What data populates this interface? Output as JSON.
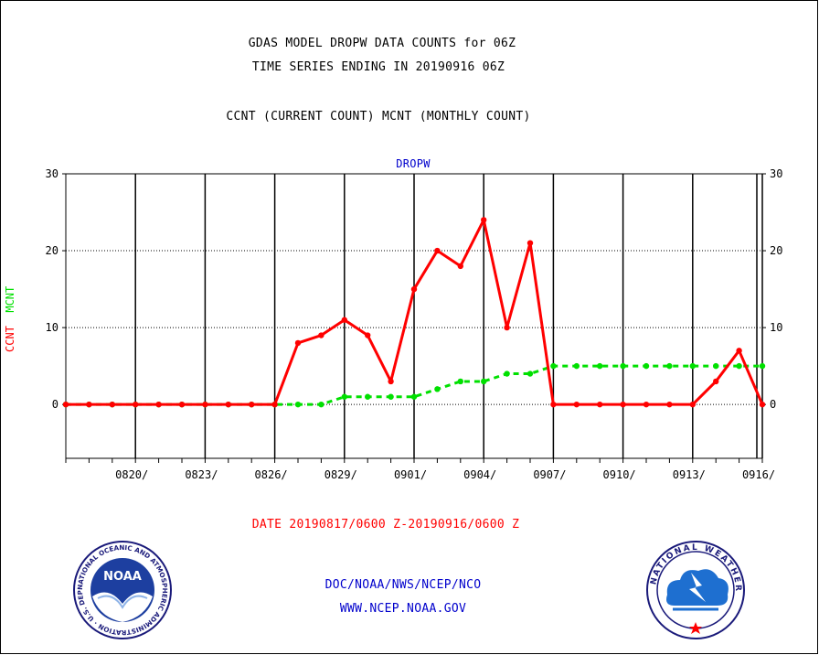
{
  "chart_data": {
    "type": "line",
    "title_lines": [
      "GDAS MODEL DROPW DATA COUNTS for 06Z",
      "TIME SERIES ENDING IN 20190916 06Z"
    ],
    "subtitle": "CCNT (CURRENT COUNT) MCNT (MONTHLY COUNT)",
    "panel_label": "DROPW",
    "ylabel_ccnt": "CCNT",
    "ylabel_mcnt": "MCNT",
    "xlabel": "DATE 20190817/0600 Z-20190916/0600 Z",
    "ylim": [
      -7,
      30
    ],
    "yticks": [
      0,
      10,
      20,
      30
    ],
    "x_tick_labels": [
      "0820/",
      "0823/",
      "0826/",
      "0829/",
      "0901/",
      "0904/",
      "0907/",
      "0910/",
      "0913/",
      "0916/"
    ],
    "x_tick_dates": [
      "2019-08-20",
      "2019-08-23",
      "2019-08-26",
      "2019-08-29",
      "2019-09-01",
      "2019-09-04",
      "2019-09-07",
      "2019-09-10",
      "2019-09-13",
      "2019-09-16"
    ],
    "x": [
      "2019-08-17",
      "2019-08-18",
      "2019-08-19",
      "2019-08-20",
      "2019-08-21",
      "2019-08-22",
      "2019-08-23",
      "2019-08-24",
      "2019-08-25",
      "2019-08-26",
      "2019-08-27",
      "2019-08-28",
      "2019-08-29",
      "2019-08-30",
      "2019-08-31",
      "2019-09-01",
      "2019-09-02",
      "2019-09-03",
      "2019-09-04",
      "2019-09-05",
      "2019-09-06",
      "2019-09-07",
      "2019-09-08",
      "2019-09-09",
      "2019-09-10",
      "2019-09-11",
      "2019-09-12",
      "2019-09-13",
      "2019-09-14",
      "2019-09-15",
      "2019-09-16"
    ],
    "series": [
      {
        "name": "CCNT",
        "color": "#ff0000",
        "style": "solid",
        "values": [
          0,
          0,
          0,
          0,
          0,
          0,
          0,
          0,
          0,
          0,
          8,
          9,
          11,
          9,
          3,
          15,
          20,
          18,
          24,
          10,
          21,
          0,
          0,
          0,
          0,
          0,
          0,
          0,
          3,
          7,
          0
        ]
      },
      {
        "name": "MCNT",
        "color": "#00e000",
        "style": "dashed",
        "values": [
          0,
          0,
          0,
          0,
          0,
          0,
          0,
          0,
          0,
          0,
          0,
          0,
          1,
          1,
          1,
          1,
          2,
          3,
          3,
          4,
          4,
          5,
          5,
          5,
          5,
          5,
          5,
          5,
          5,
          5,
          5
        ]
      }
    ],
    "grid": true
  },
  "footer": {
    "line1": "DOC/NOAA/NWS/NCEP/NCO",
    "line2": "WWW.NCEP.NOAA.GOV"
  },
  "logos": {
    "noaa_text": "NOAA",
    "noaa_ring_text": "NATIONAL OCEANIC AND ATMOSPHERIC ADMINISTRATION · U.S. DEPARTMENT OF COMMERCE ·",
    "nws_ring_text": "NATIONAL WEATHER SERVICE"
  },
  "colors": {
    "red": "#ff0000",
    "green": "#00e000",
    "blue": "#0000cc",
    "black": "#000000"
  }
}
